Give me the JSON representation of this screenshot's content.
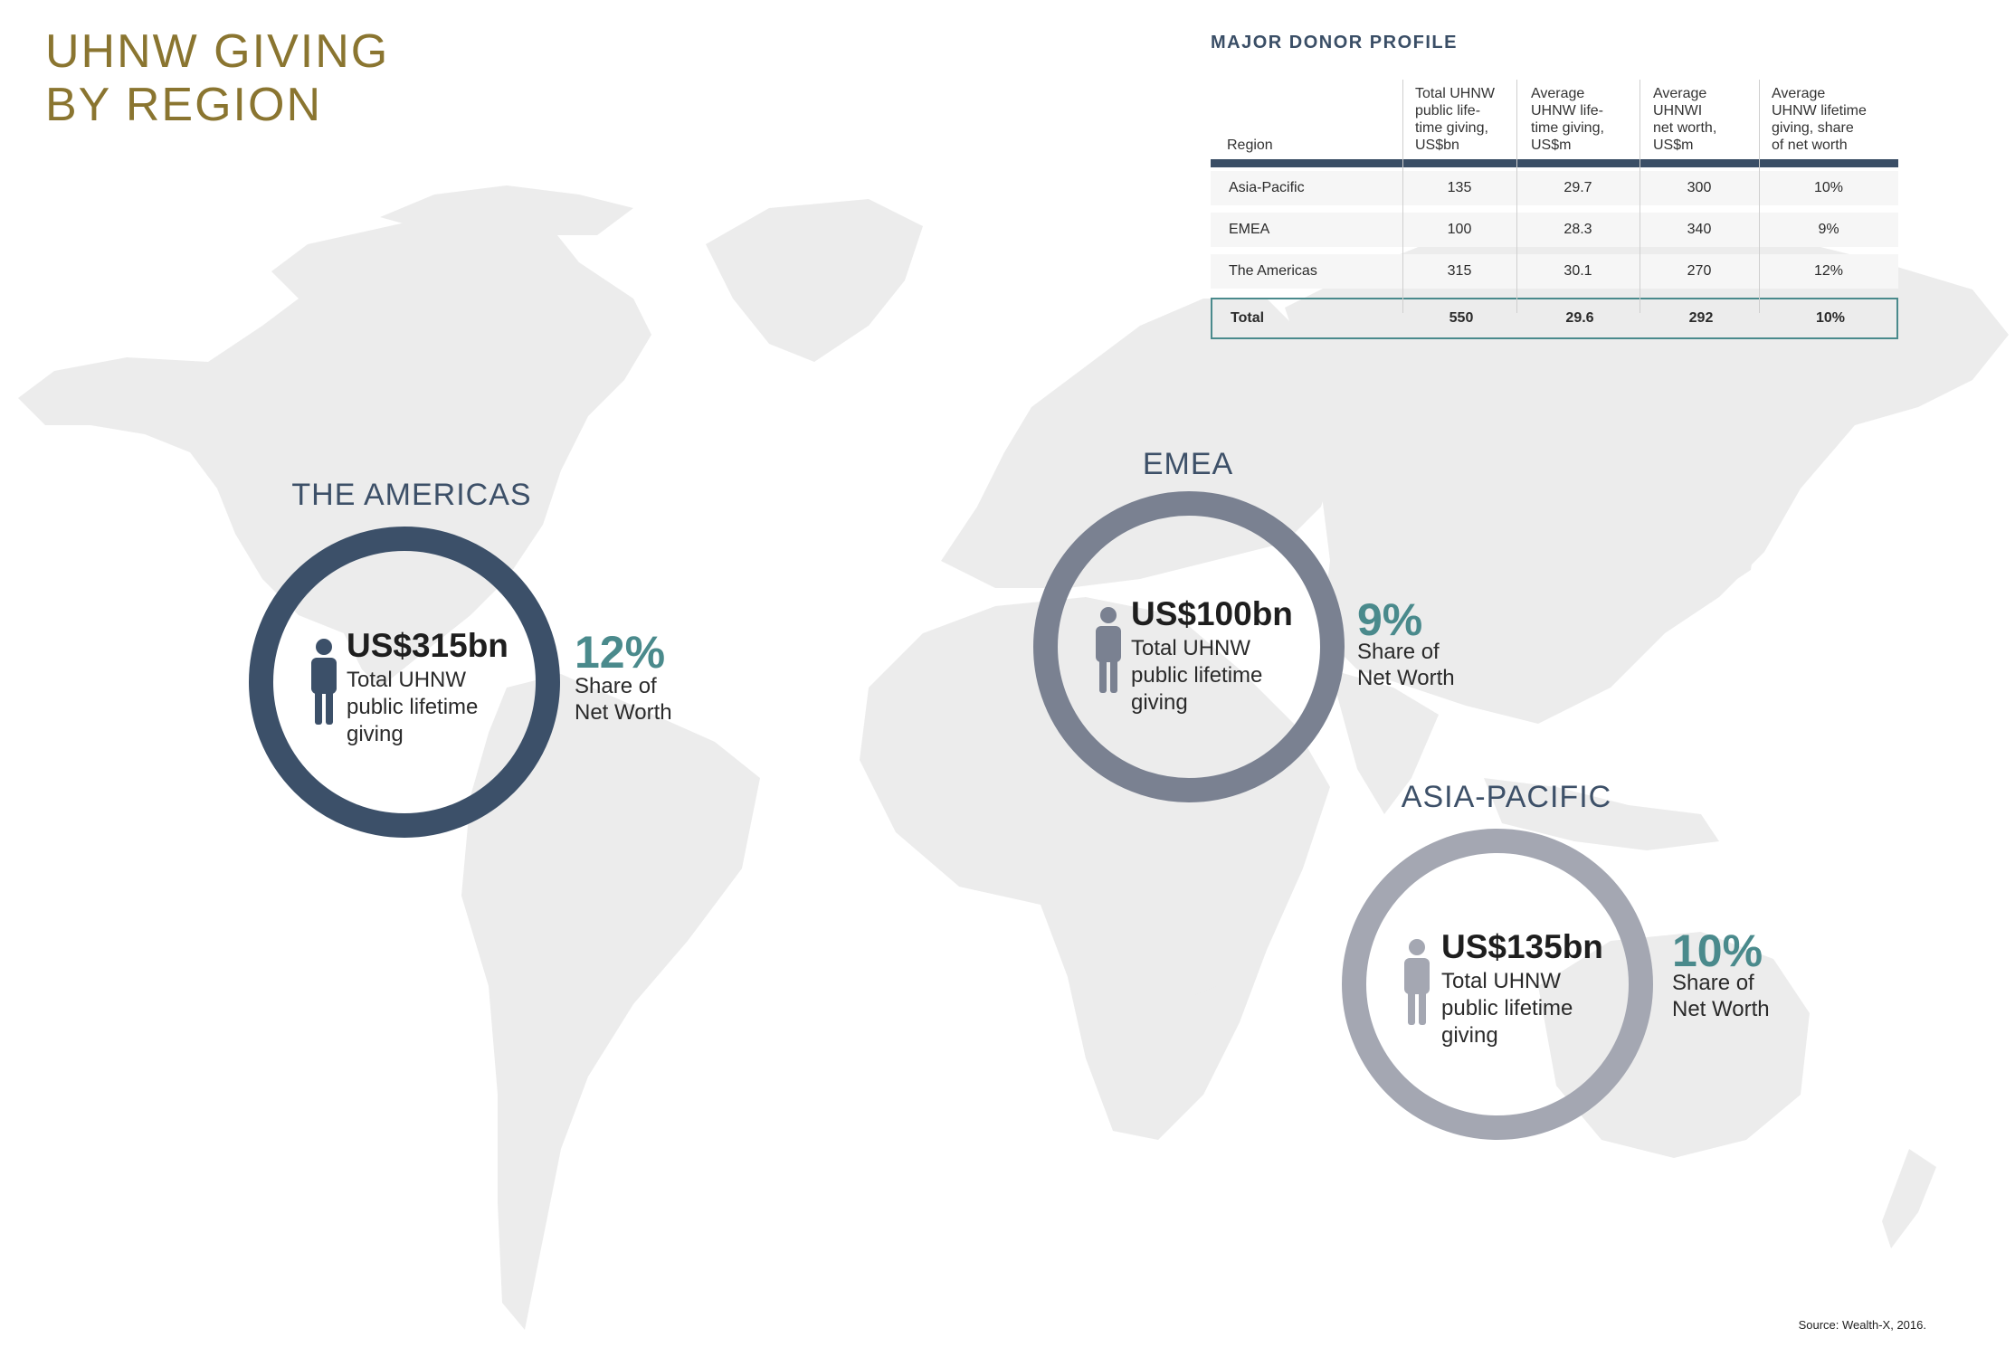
{
  "title": "UHNW GIVING\nBY REGION",
  "table": {
    "title": "MAJOR DONOR PROFILE",
    "headers": [
      "Region",
      "Total UHNW\npublic life-\ntime giving,\nUS$bn",
      "Average\nUHNW life-\ntime giving,\nUS$m",
      "Average\nUHNWI\nnet worth,\nUS$m",
      "Average\nUHNW lifetime\ngiving, share\nof net worth"
    ],
    "rows": [
      [
        "Asia-Pacific",
        "135",
        "29.7",
        "300",
        "10%"
      ],
      [
        "EMEA",
        "100",
        "28.3",
        "340",
        "9%"
      ],
      [
        "The Americas",
        "315",
        "30.1",
        "270",
        "12%"
      ]
    ],
    "total": [
      "Total",
      "550",
      "29.6",
      "292",
      "10%"
    ]
  },
  "regions": {
    "americas": {
      "label": "THE AMERICAS",
      "amount": "US$315bn",
      "desc": "Total UHNW\npublic lifetime\ngiving",
      "share": "12%",
      "share_label": "Share of\nNet Worth",
      "color": "#3c5069"
    },
    "emea": {
      "label": "EMEA",
      "amount": "US$100bn",
      "desc": "Total UHNW\npublic lifetime\ngiving",
      "share": "9%",
      "share_label": "Share of\nNet Worth",
      "color": "#7a8191"
    },
    "asia": {
      "label": "ASIA-PACIFIC",
      "amount": "US$135bn",
      "desc": "Total UHNW\npublic lifetime\ngiving",
      "share": "10%",
      "share_label": "Share of\nNet Worth",
      "color": "#a4a7b2"
    }
  },
  "icons": {
    "person": "person-icon"
  },
  "source": "Source: Wealth-X, 2016.",
  "chart_data": {
    "type": "table",
    "title": "MAJOR DONOR PROFILE",
    "columns": [
      "Region",
      "Total UHNW public lifetime giving, US$bn",
      "Average UHNW lifetime giving, US$m",
      "Average UHNWI net worth, US$m",
      "Average UHNW lifetime giving, share of net worth"
    ],
    "rows": [
      {
        "region": "Asia-Pacific",
        "total_giving_bn": 135,
        "avg_giving_m": 29.7,
        "avg_net_worth_m": 300,
        "share_pct": 10
      },
      {
        "region": "EMEA",
        "total_giving_bn": 100,
        "avg_giving_m": 28.3,
        "avg_net_worth_m": 340,
        "share_pct": 9
      },
      {
        "region": "The Americas",
        "total_giving_bn": 315,
        "avg_giving_m": 30.1,
        "avg_net_worth_m": 270,
        "share_pct": 12
      },
      {
        "region": "Total",
        "total_giving_bn": 550,
        "avg_giving_m": 29.6,
        "avg_net_worth_m": 292,
        "share_pct": 10
      }
    ]
  }
}
